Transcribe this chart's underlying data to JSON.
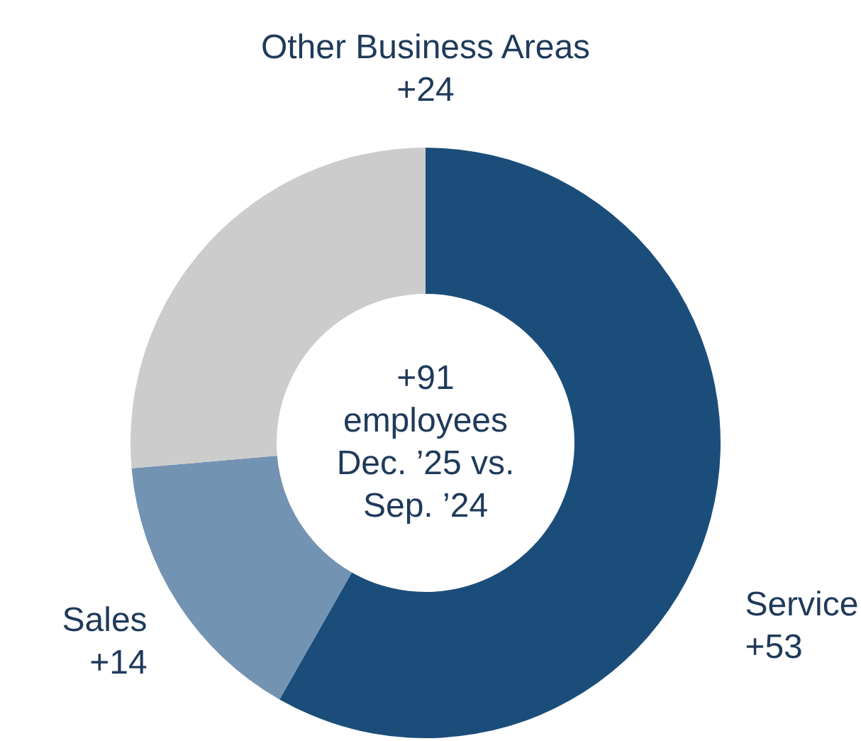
{
  "chart_data": {
    "type": "donut",
    "categories": [
      "Service",
      "Sales",
      "Other Business Areas"
    ],
    "values": [
      53,
      14,
      24
    ],
    "value_labels": [
      "+53",
      "+14",
      "+24"
    ],
    "colors": [
      "#1b4d7a",
      "#7393b3",
      "#cccccc"
    ],
    "annotations": [
      "+91",
      "employees",
      "Dec. ’25 vs.",
      "Sep. ’24"
    ]
  }
}
